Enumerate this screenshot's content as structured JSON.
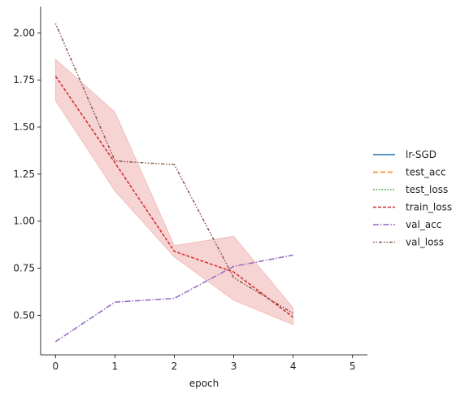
{
  "chart_data": {
    "type": "line",
    "xlabel": "epoch",
    "ylabel": "",
    "title": "",
    "xlim": [
      -0.25,
      5.25
    ],
    "ylim": [
      0.29,
      2.14
    ],
    "xticks": [
      0,
      1,
      2,
      3,
      4,
      5
    ],
    "yticks": [
      0.5,
      0.75,
      1.0,
      1.25,
      1.5,
      1.75,
      2.0
    ],
    "ytick_labels": [
      "0.50",
      "0.75",
      "1.00",
      "1.25",
      "1.50",
      "1.75",
      "2.00"
    ],
    "grid": false,
    "legend_position": "right",
    "series": [
      {
        "name": "lr-SGD",
        "color": "#1f77b4",
        "dash": "",
        "x": [],
        "y": []
      },
      {
        "name": "test_acc",
        "color": "#ff7f0e",
        "dash": "6 3",
        "x": [],
        "y": []
      },
      {
        "name": "test_loss",
        "color": "#2ca02c",
        "dash": "1.5 2",
        "x": [],
        "y": []
      },
      {
        "name": "train_loss",
        "color": "#d62728",
        "dash": "4 2",
        "x": [
          0,
          1,
          2,
          3,
          4
        ],
        "y": [
          1.77,
          1.31,
          0.84,
          0.73,
          0.49
        ],
        "band_lower": [
          1.64,
          1.16,
          0.81,
          0.58,
          0.45
        ],
        "band_upper": [
          1.86,
          1.58,
          0.87,
          0.92,
          0.54
        ]
      },
      {
        "name": "val_acc",
        "color": "#9467bd",
        "dash": "7 2 1.5 2",
        "x": [
          0,
          1,
          2,
          3,
          4
        ],
        "y": [
          0.36,
          0.57,
          0.59,
          0.76,
          0.82
        ]
      },
      {
        "name": "val_loss",
        "color": "#8c564b",
        "dash": "1.5 2 1.5 2 4 2",
        "x": [
          0,
          1,
          2,
          3,
          4
        ],
        "y": [
          2.05,
          1.32,
          1.3,
          0.7,
          0.51
        ]
      }
    ]
  }
}
